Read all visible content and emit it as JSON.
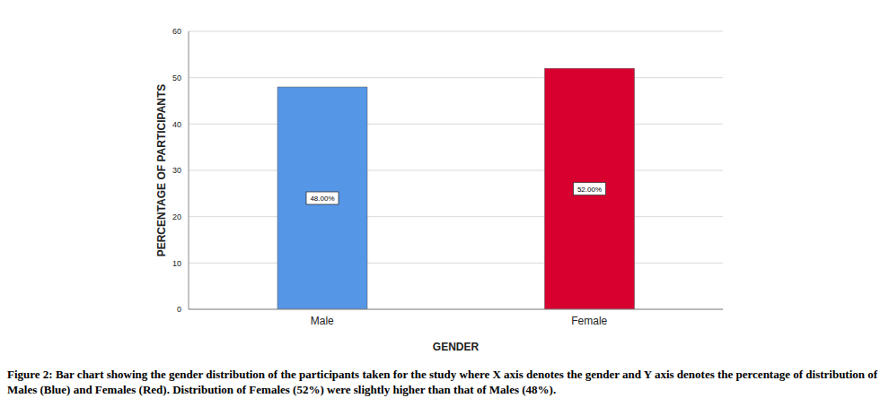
{
  "chart_data": {
    "type": "bar",
    "categories": [
      "Male",
      "Female"
    ],
    "values": [
      48,
      52
    ],
    "value_labels": [
      "48.00%",
      "52.00%"
    ],
    "data_labels": true,
    "colors": [
      "#5596e6",
      "#d7002f"
    ],
    "x_label": "GENDER",
    "y_label": "PERCENTAGE OF PARTICIPANTS",
    "ylim": [
      0,
      60
    ],
    "yticks": [
      0,
      10,
      20,
      30,
      40,
      50,
      60
    ],
    "grid": true,
    "caption": "Figure 2: Bar chart showing the gender distribution of the participants taken for the study where X axis denotes the gender and Y axis denotes the percentage of distribution of Males (Blue) and Females (Red). Distribution of Females (52%) were slightly higher than that of Males (48%)."
  }
}
